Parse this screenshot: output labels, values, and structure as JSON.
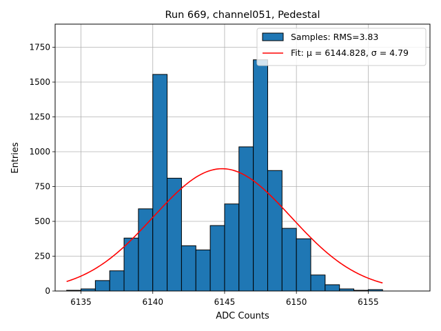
{
  "chart_data": {
    "type": "bar",
    "title": "Run 669, channel051, Pedestal",
    "xlabel": "ADC Counts",
    "ylabel": "Entries",
    "xlim": [
      6133.2,
      6159.3
    ],
    "ylim": [
      0,
      1916
    ],
    "grid": true,
    "legend_position": "top-right",
    "bin_width": 1,
    "x_ticks": [
      6135,
      6140,
      6145,
      6150,
      6155
    ],
    "y_ticks": [
      0,
      250,
      500,
      750,
      1000,
      1250,
      1500,
      1750
    ],
    "bins": [
      6134,
      6135,
      6136,
      6137,
      6138,
      6139,
      6140,
      6141,
      6142,
      6143,
      6144,
      6145,
      6146,
      6147,
      6148,
      6149,
      6150,
      6151,
      6152,
      6153,
      6154,
      6155
    ],
    "counts": [
      5,
      15,
      75,
      145,
      380,
      590,
      1555,
      810,
      325,
      295,
      470,
      625,
      1035,
      1660,
      865,
      450,
      375,
      115,
      45,
      15,
      5,
      10
    ],
    "series": [
      {
        "name": "Samples: RMS=3.83",
        "kind": "histogram",
        "color": "#1f77b4",
        "edge_color": "#000000"
      },
      {
        "name": "Fit: μ = 6144.828, σ = 4.79",
        "kind": "gaussian",
        "color": "#ff0000",
        "mu": 6144.828,
        "sigma": 4.79,
        "amplitude": 878,
        "x_range": [
          6134,
          6156
        ]
      }
    ]
  }
}
